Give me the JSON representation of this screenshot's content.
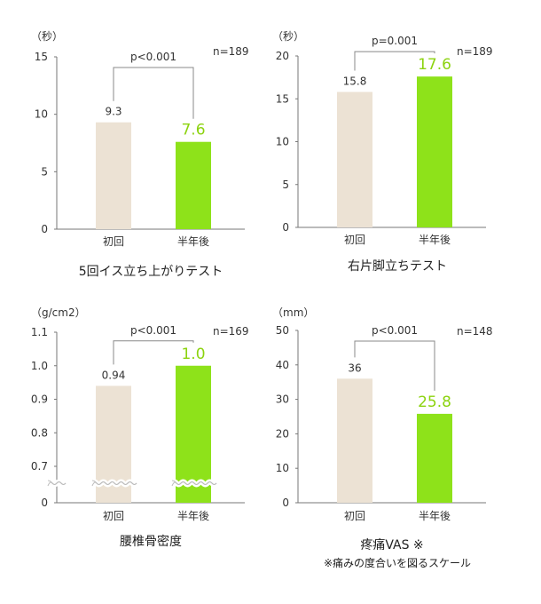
{
  "colors": {
    "before": "#ece2d4",
    "after": "#8ee21a",
    "after_text": "#8cd30f",
    "axis": "#777777"
  },
  "chart_data": [
    {
      "type": "bar",
      "title": "5回イス立ち上がりテスト",
      "unit": "（秒）",
      "categories": [
        "初回",
        "半年後"
      ],
      "values": [
        9.3,
        7.6
      ],
      "value_labels": [
        "9.3",
        "7.6"
      ],
      "ylim": [
        0,
        15
      ],
      "ticks": [
        0,
        5,
        10,
        15
      ],
      "n_label": "n=189",
      "p_label": "p<0.001",
      "axis_break": false
    },
    {
      "type": "bar",
      "title": "右片脚立ちテスト",
      "unit": "（秒）",
      "categories": [
        "初回",
        "半年後"
      ],
      "values": [
        15.8,
        17.6
      ],
      "value_labels": [
        "15.8",
        "17.6"
      ],
      "ylim": [
        0,
        20
      ],
      "ticks": [
        0,
        5,
        10,
        15,
        20
      ],
      "n_label": "n=189",
      "p_label": "p=0.001",
      "axis_break": false
    },
    {
      "type": "bar",
      "title": "腰椎骨密度",
      "unit": "（g/cm2）",
      "categories": [
        "初回",
        "半年後"
      ],
      "values": [
        0.94,
        1.0
      ],
      "value_labels": [
        "0.94",
        "1.0"
      ],
      "ylim": [
        0.6,
        1.1
      ],
      "ticks": [
        0,
        0.7,
        0.8,
        0.9,
        1.0,
        1.1
      ],
      "tick_labels": [
        "0",
        "0.7",
        "0.8",
        "0.9",
        "1.0",
        "1.1"
      ],
      "n_label": "n=169",
      "p_label": "p<0.001",
      "axis_break": true
    },
    {
      "type": "bar",
      "title": "疼痛VAS ※",
      "subtitle": "※痛みの度合いを図るスケール",
      "unit": "（mm）",
      "categories": [
        "初回",
        "半年後"
      ],
      "values": [
        36,
        25.8
      ],
      "value_labels": [
        "36",
        "25.8"
      ],
      "ylim": [
        0,
        50
      ],
      "ticks": [
        0,
        10,
        20,
        30,
        40,
        50
      ],
      "n_label": "n=148",
      "p_label": "p<0.001",
      "axis_break": false
    }
  ]
}
